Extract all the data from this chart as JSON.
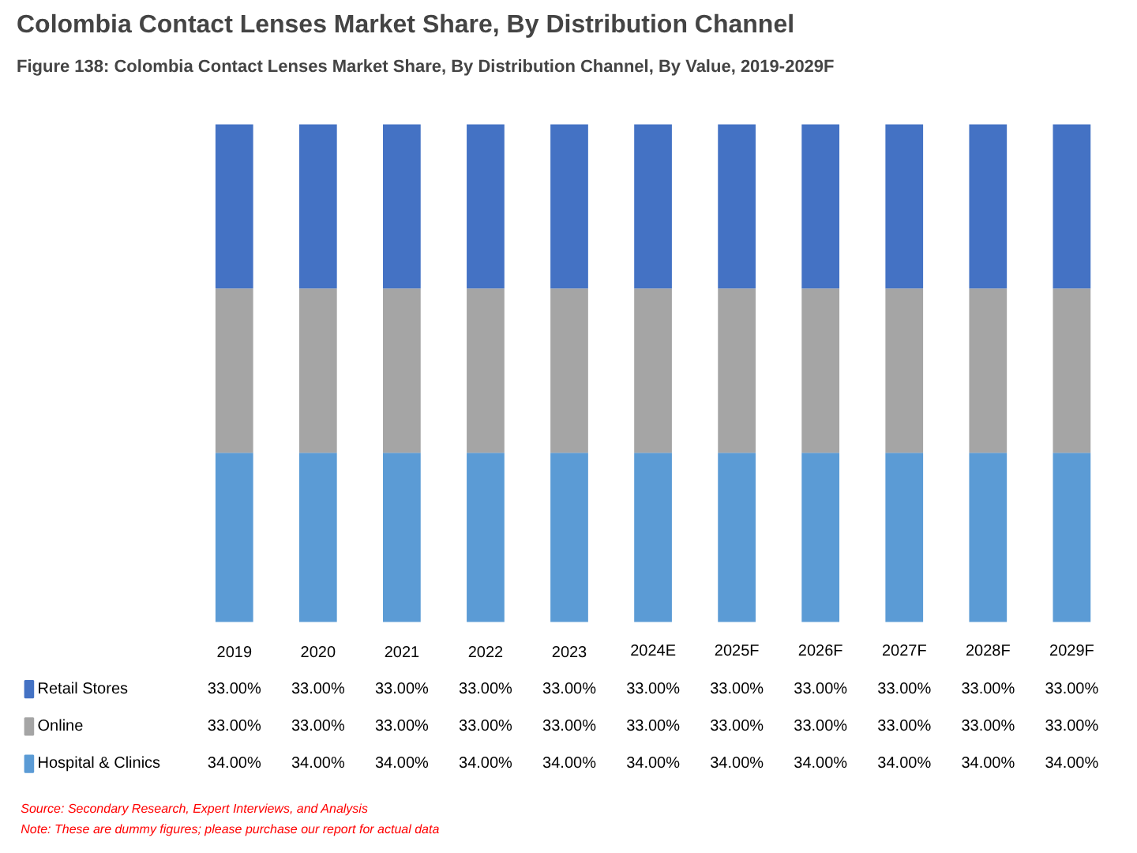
{
  "chart_data": {
    "type": "bar",
    "stacked": true,
    "title": "Colombia Contact Lenses Market Share, By Distribution Channel",
    "subtitle": "Figure 138: Colombia Contact Lenses Market Share, By Distribution Channel, By Value, 2019-2029F",
    "categories": [
      "2019",
      "2020",
      "2021",
      "2022",
      "2023",
      "2024E",
      "2025F",
      "2026F",
      "2027F",
      "2028F",
      "2029F"
    ],
    "series": [
      {
        "name": "Hospital & Clinics",
        "color": "#5b9bd5",
        "values": [
          34,
          34,
          34,
          34,
          34,
          34,
          34,
          34,
          34,
          34,
          34
        ],
        "value_labels": [
          "34.00%",
          "34.00%",
          "34.00%",
          "34.00%",
          "34.00%",
          "34.00%",
          "34.00%",
          "34.00%",
          "34.00%",
          "34.00%",
          "34.00%"
        ]
      },
      {
        "name": "Online",
        "color": "#a5a5a5",
        "values": [
          33,
          33,
          33,
          33,
          33,
          33,
          33,
          33,
          33,
          33,
          33
        ],
        "value_labels": [
          "33.00%",
          "33.00%",
          "33.00%",
          "33.00%",
          "33.00%",
          "33.00%",
          "33.00%",
          "33.00%",
          "33.00%",
          "33.00%",
          "33.00%"
        ]
      },
      {
        "name": "Retail Stores",
        "color": "#4472c4",
        "values": [
          33,
          33,
          33,
          33,
          33,
          33,
          33,
          33,
          33,
          33,
          33
        ],
        "value_labels": [
          "33.00%",
          "33.00%",
          "33.00%",
          "33.00%",
          "33.00%",
          "33.00%",
          "33.00%",
          "33.00%",
          "33.00%",
          "33.00%",
          "33.00%"
        ]
      }
    ],
    "legend": "bottom",
    "grid": false,
    "annotations": [
      "Source: Secondary Research, Expert Interviews, and Analysis",
      "Note: These are dummy figures; please purchase our report for actual data"
    ]
  }
}
